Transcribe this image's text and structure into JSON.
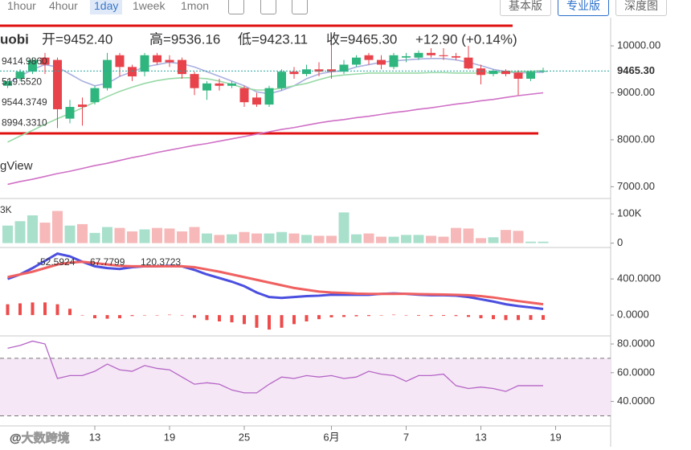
{
  "toolbar": {
    "intervals": [
      "1hour",
      "4hour",
      "1day",
      "1week",
      "1mon"
    ],
    "active": 2,
    "versions": [
      "基本版",
      "专业版",
      "深度图"
    ],
    "active_version": 1
  },
  "chart_data": {
    "type": "candlestick",
    "categories": [
      null,
      null,
      null,
      null,
      null,
      null,
      null,
      "13",
      null,
      null,
      null,
      null,
      null,
      "19",
      null,
      null,
      null,
      null,
      null,
      "25",
      null,
      null,
      null,
      null,
      null,
      null,
      "6月",
      null,
      null,
      null,
      null,
      null,
      "7",
      null,
      null,
      null,
      null,
      null,
      "13",
      null,
      null,
      null,
      null,
      null,
      "19"
    ],
    "header": [
      "开=9452.40",
      "高=9536.16",
      "低=9423.11",
      "收=9465.30",
      "+12.90 (+0.14%)"
    ],
    "source_label": "uobi",
    "brand_label": "gView",
    "watermark": "@大数跨境",
    "price": {
      "up_color": "#2fb57e",
      "down_color": "#e8424b",
      "ylim": [
        6750,
        10600
      ],
      "yticks": [
        {
          "value": 10000,
          "label": "10000.00"
        },
        {
          "value": 9000,
          "label": "9000.00"
        },
        {
          "value": 8000,
          "label": "8000.00"
        },
        {
          "value": 7000,
          "label": "7000.00"
        }
      ],
      "last": {
        "value": 9465.3,
        "label": "9465.30"
      },
      "ma_labels": [
        {
          "text": "9414.9860",
          "color": "#a58ad8"
        },
        {
          "text": "519.5520",
          "color": "#8fa0d0"
        },
        {
          "text": "9544.3749",
          "color": "#58b86a"
        },
        {
          "text": "8994.3310",
          "color": "#c04fb0"
        }
      ],
      "open": [
        9150,
        9300,
        9450,
        9750,
        9700,
        8450,
        8750,
        8800,
        9100,
        9800,
        9550,
        9450,
        9800,
        9700,
        9700,
        9400,
        9050,
        9200,
        9150,
        9100,
        8900,
        8750,
        9100,
        9450,
        9400,
        9500,
        9500,
        9450,
        9600,
        9800,
        9700,
        9550,
        9750,
        9750,
        9850,
        9800,
        9780,
        9750,
        9520,
        9400,
        9470,
        9430,
        9300,
        9452.4,
        null
      ],
      "high": [
        9300,
        9500,
        9750,
        9850,
        9750,
        8850,
        8900,
        9150,
        9850,
        9850,
        9600,
        9850,
        9850,
        9800,
        9750,
        9450,
        9250,
        9300,
        9250,
        9150,
        9000,
        9150,
        9500,
        9550,
        9600,
        9650,
        10250,
        9700,
        9800,
        9850,
        9800,
        9850,
        9850,
        9900,
        9950,
        9950,
        9850,
        10000,
        9600,
        9500,
        9500,
        9480,
        9480,
        9536.16,
        null
      ],
      "low": [
        9100,
        9250,
        9400,
        9400,
        8250,
        8350,
        8300,
        8750,
        9050,
        9350,
        9250,
        9350,
        9600,
        9550,
        9300,
        8950,
        8850,
        9050,
        9100,
        8700,
        8700,
        8700,
        9050,
        9300,
        9350,
        9350,
        9300,
        9400,
        9550,
        9600,
        9500,
        9500,
        9650,
        9700,
        9750,
        9700,
        9700,
        9500,
        9180,
        9350,
        9350,
        8950,
        9250,
        9423.11,
        null
      ],
      "close": [
        9250,
        9450,
        9700,
        9600,
        8650,
        8700,
        8700,
        9100,
        9700,
        9550,
        9350,
        9800,
        9650,
        9650,
        9400,
        9100,
        9200,
        9150,
        9200,
        8800,
        8750,
        9100,
        9450,
        9400,
        9500,
        9450,
        9450,
        9600,
        9750,
        9700,
        9600,
        9800,
        9780,
        9850,
        9800,
        9780,
        9750,
        9520,
        9380,
        9470,
        9400,
        9300,
        9450,
        9465.3,
        null
      ],
      "ma": [
        {
          "color": "#aab0e0",
          "values": [
            9200,
            9350,
            9500,
            9600,
            9550,
            9400,
            9250,
            9150,
            9200,
            9350,
            9450,
            9550,
            9600,
            9650,
            9620,
            9550,
            9450,
            9350,
            9250,
            9150,
            9020,
            8980,
            9050,
            9150,
            9300,
            9400,
            9450,
            9470,
            9550,
            9600,
            9650,
            9680,
            9700,
            9720,
            9730,
            9730,
            9700,
            9650,
            9580,
            9500,
            9450,
            9420,
            9430,
            9440,
            null
          ]
        },
        {
          "color": "#98d9a6",
          "values": [
            7950,
            8080,
            8200,
            8330,
            8450,
            8560,
            8680,
            8800,
            8920,
            9030,
            9120,
            9200,
            9260,
            9300,
            9320,
            9320,
            9300,
            9250,
            9180,
            9100,
            9060,
            9060,
            9100,
            9150,
            9200,
            9280,
            9350,
            9380,
            9400,
            9420,
            9420,
            9420,
            9420,
            9420,
            9430,
            9430,
            9420,
            9420,
            9420,
            9430,
            9440,
            9450,
            9460,
            9470,
            null
          ]
        },
        {
          "color": "#d070c6",
          "values": [
            7050,
            7110,
            7160,
            7220,
            7280,
            7330,
            7390,
            7450,
            7500,
            7560,
            7620,
            7670,
            7730,
            7780,
            7830,
            7880,
            7920,
            7970,
            8020,
            8070,
            8120,
            8170,
            8220,
            8260,
            8310,
            8360,
            8400,
            8430,
            8470,
            8500,
            8540,
            8580,
            8610,
            8650,
            8680,
            8720,
            8760,
            8790,
            8830,
            8860,
            8900,
            8940,
            8970,
            9000,
            null
          ]
        }
      ]
    },
    "volume": {
      "type": "bar",
      "label": "3K",
      "up_color": "#a8e0cc",
      "down_color": "#f6b8b8",
      "ylim": [
        -15000,
        150000
      ],
      "yticks": [
        {
          "value": 100000,
          "label": "100K"
        },
        0
      ],
      "values": [
        60000,
        75000,
        95000,
        70000,
        110000,
        60000,
        65000,
        35000,
        55000,
        52000,
        40000,
        47000,
        52000,
        50000,
        40000,
        55000,
        33000,
        28000,
        30000,
        38000,
        33000,
        33000,
        38000,
        33000,
        28000,
        25000,
        25000,
        105000,
        30000,
        33000,
        22000,
        22000,
        28000,
        28000,
        25000,
        22000,
        52000,
        50000,
        17000,
        20000,
        45000,
        42000,
        5000,
        5000,
        null
      ]
    },
    "macd": {
      "type": "line",
      "ylim": [
        -230,
        730
      ],
      "yticks": [
        {
          "value": 400,
          "label": "400.0000"
        },
        {
          "value": 0,
          "label": "0.0000"
        }
      ],
      "hist": {
        "color": "#ee4b4b",
        "values": [
          120,
          130,
          140,
          140,
          120,
          70,
          0,
          -35,
          -40,
          -35,
          -10,
          0,
          0,
          5,
          0,
          -30,
          -55,
          -70,
          -80,
          -100,
          -140,
          -160,
          -140,
          -100,
          -70,
          -45,
          -25,
          -20,
          -13,
          -10,
          0,
          5,
          -1,
          -7,
          -10,
          -8,
          -10,
          -20,
          -35,
          -45,
          -55,
          -55,
          -53,
          -52.5924,
          null
        ]
      },
      "series": [
        {
          "color": "#4b4fe0",
          "values": [
            400,
            450,
            520,
            600,
            680,
            650,
            590,
            540,
            520,
            510,
            530,
            540,
            540,
            545,
            540,
            500,
            450,
            410,
            370,
            320,
            250,
            200,
            190,
            200,
            210,
            215,
            225,
            225,
            225,
            225,
            235,
            240,
            235,
            225,
            220,
            220,
            215,
            200,
            175,
            150,
            120,
            100,
            85,
            67.7799,
            null
          ]
        },
        {
          "color": "#f06060",
          "values": [
            420,
            450,
            480,
            520,
            560,
            580,
            590,
            575,
            560,
            545,
            540,
            540,
            540,
            540,
            540,
            530,
            505,
            480,
            450,
            420,
            390,
            360,
            330,
            300,
            280,
            260,
            250,
            245,
            238,
            235,
            235,
            235,
            236,
            232,
            230,
            228,
            225,
            220,
            210,
            195,
            175,
            155,
            138,
            120.3723,
            null
          ]
        }
      ]
    },
    "rsi": {
      "type": "line",
      "color": "#b565c7",
      "band": [
        30,
        70
      ],
      "band_color": "#f5e7f5",
      "ylim": [
        23,
        84.5
      ],
      "yticks": [
        {
          "value": 80,
          "label": "80.0000"
        },
        {
          "value": 60,
          "label": "60.0000"
        },
        {
          "value": 40,
          "label": "40.0000"
        }
      ],
      "values": [
        77,
        79,
        82,
        80,
        56,
        58,
        58,
        61,
        66,
        62,
        61,
        65,
        63,
        62,
        57,
        52,
        53,
        52,
        48,
        46,
        46,
        52,
        57,
        56,
        58,
        57,
        58,
        56,
        57,
        61,
        59,
        58,
        54,
        58,
        58,
        59,
        51,
        49,
        50,
        49,
        47,
        51,
        51,
        51,
        null
      ]
    }
  }
}
